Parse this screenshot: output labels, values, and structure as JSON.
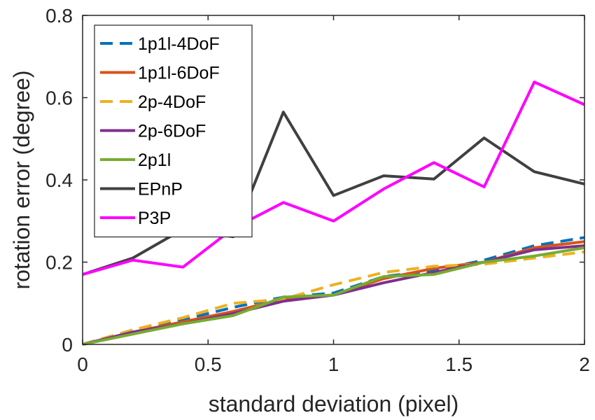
{
  "chart_data": {
    "type": "line",
    "title": "",
    "xlabel": "standard deviation (pixel)",
    "ylabel": "rotation error (degree)",
    "xlim": [
      0,
      2
    ],
    "ylim": [
      0,
      0.8
    ],
    "xticks": [
      0,
      0.5,
      1,
      1.5,
      2
    ],
    "xtick_labels": [
      "0",
      "0.5",
      "1",
      "1.5",
      "2"
    ],
    "yticks": [
      0,
      0.2,
      0.4,
      0.6,
      0.8
    ],
    "ytick_labels": [
      "0",
      "0.2",
      "0.4",
      "0.6",
      "0.8"
    ],
    "grid": false,
    "legend_position": "top-left",
    "x": [
      0,
      0.2,
      0.4,
      0.6,
      0.8,
      1.0,
      1.2,
      1.4,
      1.6,
      1.8,
      2.0
    ],
    "series": [
      {
        "name": "1p1l-4DoF",
        "color": "#0072BD",
        "dash": "dashed",
        "values": [
          0,
          0.035,
          0.06,
          0.09,
          0.115,
          0.125,
          0.165,
          0.18,
          0.205,
          0.24,
          0.26
        ]
      },
      {
        "name": "1p1l-6DoF",
        "color": "#D95319",
        "dash": "solid",
        "values": [
          0,
          0.03,
          0.055,
          0.08,
          0.11,
          0.12,
          0.16,
          0.185,
          0.2,
          0.235,
          0.25
        ]
      },
      {
        "name": "2p-4DoF",
        "color": "#EDB120",
        "dash": "dashed",
        "values": [
          0,
          0.035,
          0.065,
          0.1,
          0.11,
          0.145,
          0.175,
          0.19,
          0.195,
          0.21,
          0.225
        ]
      },
      {
        "name": "2p-6DoF",
        "color": "#7E2F8E",
        "dash": "solid",
        "values": [
          0,
          0.03,
          0.05,
          0.075,
          0.105,
          0.12,
          0.15,
          0.175,
          0.2,
          0.23,
          0.24
        ]
      },
      {
        "name": "2p1l",
        "color": "#77AC30",
        "dash": "solid",
        "values": [
          0,
          0.025,
          0.05,
          0.07,
          0.115,
          0.12,
          0.165,
          0.17,
          0.2,
          0.215,
          0.235
        ]
      },
      {
        "name": "EPnP",
        "color": "#404040",
        "dash": "solid",
        "values": [
          0.17,
          0.21,
          0.28,
          0.262,
          0.565,
          0.362,
          0.41,
          0.402,
          0.502,
          0.42,
          0.39
        ]
      },
      {
        "name": "P3P",
        "color": "#FF00FF",
        "dash": "solid",
        "values": [
          0.17,
          0.205,
          0.188,
          0.282,
          0.345,
          0.3,
          0.378,
          0.442,
          0.383,
          0.638,
          0.583
        ]
      }
    ]
  }
}
